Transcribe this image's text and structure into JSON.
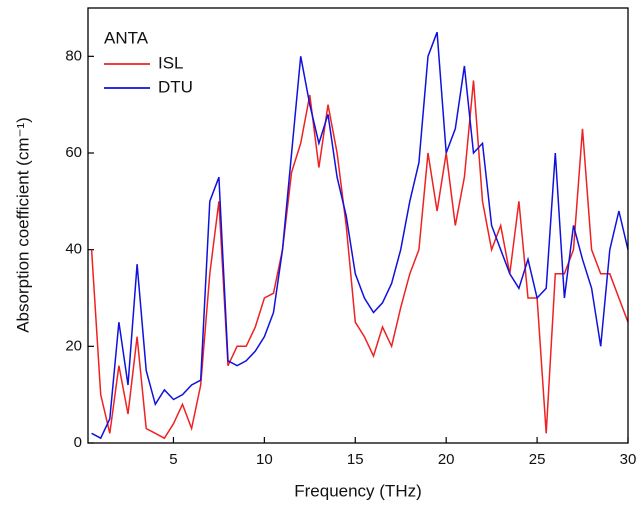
{
  "chart_data": {
    "type": "line",
    "xlabel": "Frequency (THz)",
    "ylabel": "Absorption coefficient (cm⁻¹)",
    "legend_title": "ANTA",
    "legend": "upper left",
    "x": [
      0.5,
      1,
      1.5,
      2,
      2.5,
      3,
      3.5,
      4,
      4.5,
      5,
      5.5,
      6,
      6.5,
      7,
      7.5,
      8,
      8.5,
      9,
      9.5,
      10,
      10.5,
      11,
      11.5,
      12,
      12.5,
      13,
      13.5,
      14,
      14.5,
      15,
      15.5,
      16,
      16.5,
      17,
      17.5,
      18,
      18.5,
      19,
      19.5,
      20,
      20.5,
      21,
      21.5,
      22,
      22.5,
      23,
      23.5,
      24,
      24.5,
      25,
      25.5,
      26,
      26.5,
      27,
      27.5,
      28,
      28.5,
      29,
      29.5,
      30
    ],
    "series": [
      {
        "name": "ISL",
        "color": "#ee2222",
        "values": [
          40,
          10,
          2,
          16,
          6,
          22,
          3,
          2,
          1,
          4,
          8,
          3,
          12,
          35,
          50,
          16,
          20,
          20,
          24,
          30,
          31,
          40,
          56,
          62,
          72,
          57,
          70,
          60,
          45,
          25,
          22,
          18,
          24,
          20,
          28,
          35,
          40,
          60,
          48,
          60,
          45,
          55,
          75,
          50,
          40,
          45,
          35,
          50,
          30,
          30,
          2,
          35,
          35,
          40,
          65,
          40,
          35,
          35,
          30,
          25
        ]
      },
      {
        "name": "DTU",
        "color": "#1111dd",
        "values": [
          2,
          1,
          5,
          25,
          12,
          37,
          15,
          8,
          11,
          9,
          10,
          12,
          13,
          50,
          55,
          17,
          16,
          17,
          19,
          22,
          27,
          40,
          60,
          80,
          70,
          62,
          68,
          55,
          47,
          35,
          30,
          27,
          29,
          33,
          40,
          50,
          58,
          80,
          85,
          60,
          65,
          78,
          60,
          62,
          45,
          40,
          35,
          32,
          38,
          30,
          32,
          60,
          30,
          45,
          38,
          32,
          20,
          40,
          48,
          40
        ]
      }
    ],
    "xlim": [
      0.3,
      30
    ],
    "ylim": [
      0,
      90
    ],
    "xticks": [
      5,
      10,
      15,
      20,
      25,
      30
    ],
    "yticks": [
      0,
      20,
      40,
      60,
      80
    ]
  }
}
